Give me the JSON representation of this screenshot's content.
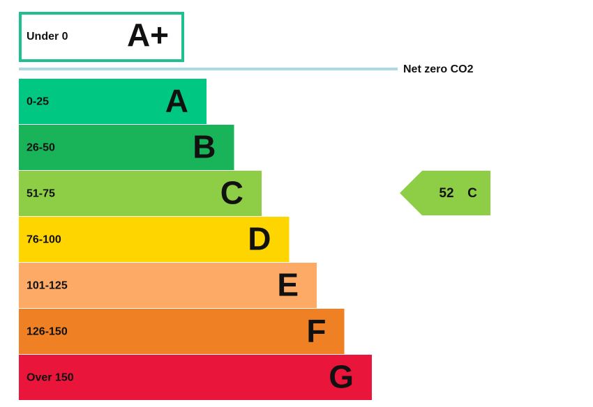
{
  "top_band": {
    "range": "Under 0",
    "rating": "A+",
    "color": "#1fbf8f"
  },
  "net_zero_label": "Net zero CO2",
  "bands": [
    {
      "range": "0-25",
      "rating": "A",
      "color": "#00c781"
    },
    {
      "range": "26-50",
      "rating": "B",
      "color": "#19b459"
    },
    {
      "range": "51-75",
      "rating": "C",
      "color": "#8dce46"
    },
    {
      "range": "76-100",
      "rating": "D",
      "color": "#ffd500"
    },
    {
      "range": "101-125",
      "rating": "E",
      "color": "#fcaa65"
    },
    {
      "range": "126-150",
      "rating": "F",
      "color": "#ef8023"
    },
    {
      "range": "Over 150",
      "rating": "G",
      "color": "#e9153b"
    }
  ],
  "current": {
    "score": 52,
    "rating": "C",
    "color": "#8dce46"
  }
}
